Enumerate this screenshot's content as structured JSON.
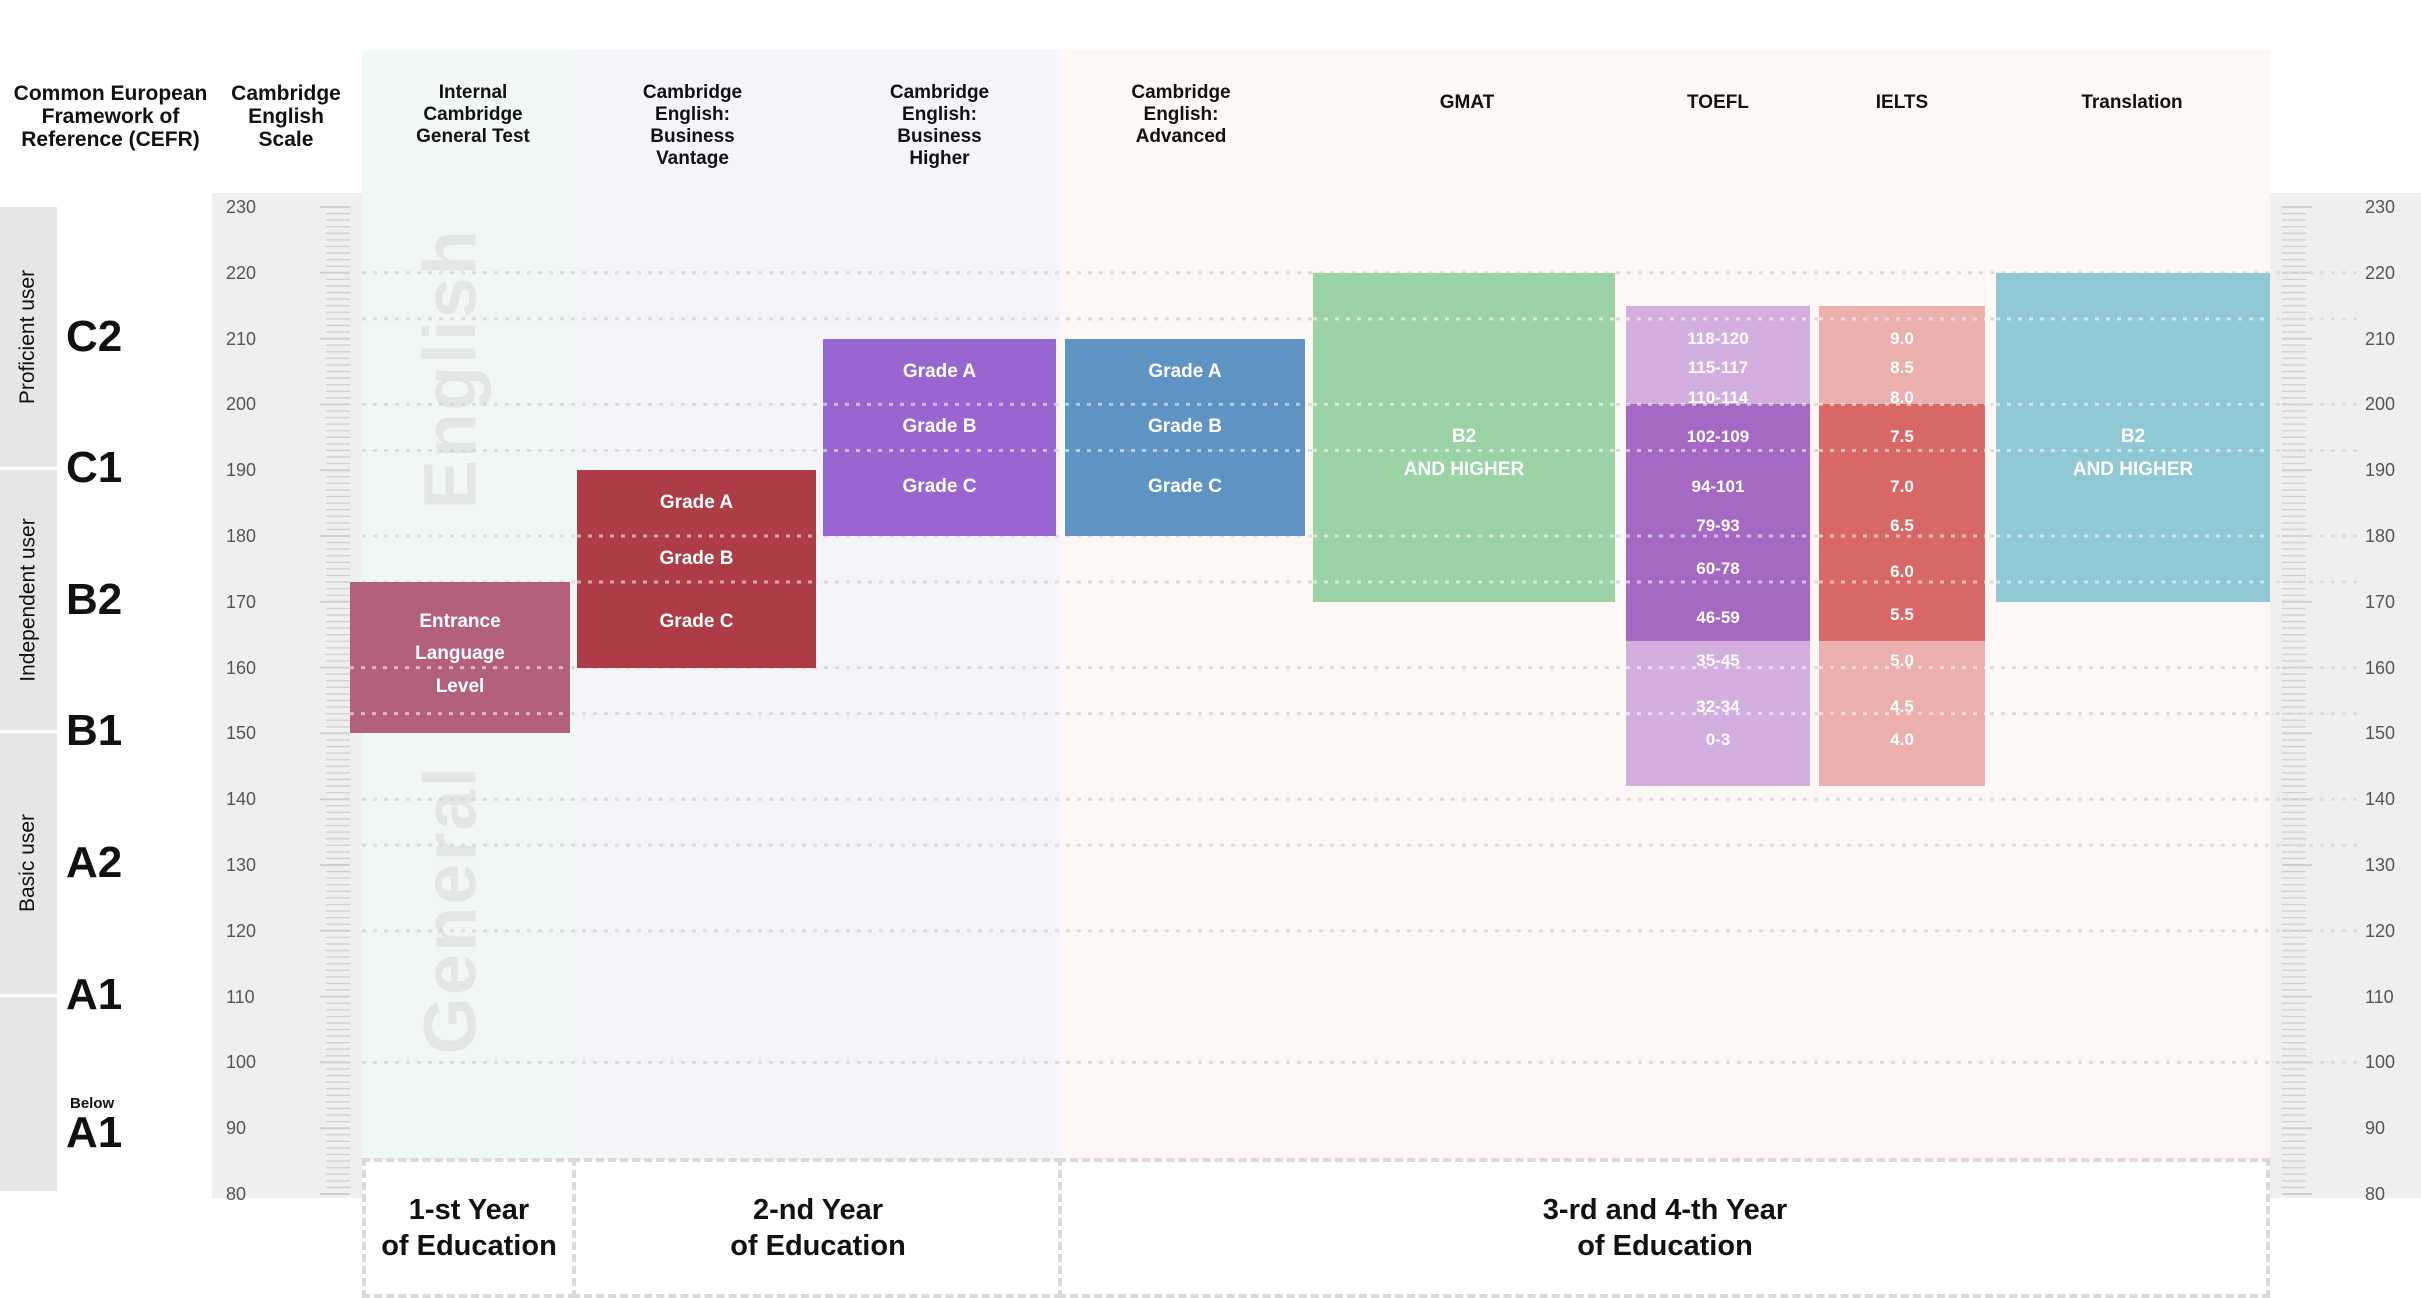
{
  "headers": {
    "cefr": "Common European Framework of Reference (CEFR)",
    "scale": "Cambridge English Scale",
    "internal": "Internal Cambridge General Test",
    "vantage": "Cambridge English: Business Vantage",
    "higher": "Cambridge English: Business Higher",
    "advanced": "Cambridge English: Advanced",
    "gmat": "GMAT",
    "toefl": "TOEFL",
    "ielts": "IELTS",
    "translation": "Translation"
  },
  "groups": [
    {
      "label": "Proficient user",
      "from": 190,
      "to": 230
    },
    {
      "label": "Independent user",
      "from": 150,
      "to": 190
    },
    {
      "label": "Basic user",
      "from": 110,
      "to": 150
    },
    {
      "label": "",
      "from": 80,
      "to": 110
    }
  ],
  "levels": [
    {
      "code": "C2",
      "at": 210
    },
    {
      "code": "C1",
      "at": 190
    },
    {
      "code": "B2",
      "at": 170
    },
    {
      "code": "B1",
      "at": 150
    },
    {
      "code": "A2",
      "at": 130
    },
    {
      "code": "A1",
      "at": 110
    },
    {
      "code": "A1",
      "at": 89,
      "prefix": "Below"
    }
  ],
  "watermark": {
    "english": "English",
    "general": "General"
  },
  "chart_data": {
    "type": "table",
    "axis": {
      "name": "Cambridge English Scale",
      "min": 80,
      "max": 230,
      "step": 10,
      "ticks": [
        80,
        90,
        100,
        110,
        120,
        130,
        140,
        150,
        160,
        170,
        180,
        190,
        200,
        210,
        220,
        230
      ]
    },
    "columns": [
      {
        "key": "internal",
        "color": "#b3607f",
        "from": 150,
        "to": 173,
        "labels": [
          {
            "text": "Entrance",
            "at": 167
          },
          {
            "text": "Language",
            "at": 162
          },
          {
            "text": "Level",
            "at": 157
          }
        ]
      },
      {
        "key": "vantage",
        "color": "#ad3c47",
        "from": 160,
        "to": 190,
        "labels": [
          {
            "text": "Grade A",
            "at": 185
          },
          {
            "text": "Grade B",
            "at": 176.5
          },
          {
            "text": "Grade C",
            "at": 167
          }
        ]
      },
      {
        "key": "higher",
        "color": "#9966d1",
        "from": 180,
        "to": 210,
        "labels": [
          {
            "text": "Grade A",
            "at": 205
          },
          {
            "text": "Grade B",
            "at": 196.5
          },
          {
            "text": "Grade C",
            "at": 187.5
          }
        ]
      },
      {
        "key": "advanced",
        "color": "#5e93c3",
        "from": 180,
        "to": 210,
        "labels": [
          {
            "text": "Grade A",
            "at": 205
          },
          {
            "text": "Grade B",
            "at": 196.5
          },
          {
            "text": "Grade C",
            "at": 187.5
          }
        ]
      },
      {
        "key": "gmat",
        "color": "#9bd2a6",
        "from": 170,
        "to": 220,
        "labels": [
          {
            "text": "B2",
            "at": 195
          },
          {
            "text": "AND HIGHER",
            "at": 190
          }
        ]
      },
      {
        "key": "toefl",
        "segments": [
          {
            "from": 200,
            "to": 215,
            "color": "#d3afdf"
          },
          {
            "from": 164,
            "to": 200,
            "color": "#a569c4"
          },
          {
            "from": 142,
            "to": 164,
            "color": "#d3afdf"
          }
        ],
        "labels": [
          {
            "text": "118-120",
            "at": 210
          },
          {
            "text": "115-117",
            "at": 205.5
          },
          {
            "text": "110-114",
            "at": 201
          },
          {
            "text": "102-109",
            "at": 195
          },
          {
            "text": "94-101",
            "at": 187.5
          },
          {
            "text": "79-93",
            "at": 181.5
          },
          {
            "text": "60-78",
            "at": 175
          },
          {
            "text": "46-59",
            "at": 167.5
          },
          {
            "text": "35-45",
            "at": 161
          },
          {
            "text": "32-34",
            "at": 154
          },
          {
            "text": "0-3",
            "at": 149
          }
        ]
      },
      {
        "key": "ielts",
        "segments": [
          {
            "from": 200,
            "to": 215,
            "color": "#ebb0ad"
          },
          {
            "from": 164,
            "to": 200,
            "color": "#d76865"
          },
          {
            "from": 142,
            "to": 164,
            "color": "#ebb0ad"
          }
        ],
        "labels": [
          {
            "text": "9.0",
            "at": 210
          },
          {
            "text": "8.5",
            "at": 205.5
          },
          {
            "text": "8.0",
            "at": 201
          },
          {
            "text": "7.5",
            "at": 195
          },
          {
            "text": "7.0",
            "at": 187.5
          },
          {
            "text": "6.5",
            "at": 181.5
          },
          {
            "text": "6.0",
            "at": 174.5
          },
          {
            "text": "5.5",
            "at": 168
          },
          {
            "text": "5.0",
            "at": 161
          },
          {
            "text": "4.5",
            "at": 154
          },
          {
            "text": "4.0",
            "at": 149
          }
        ]
      },
      {
        "key": "translation",
        "color": "#90c8d4",
        "from": 170,
        "to": 220,
        "labels": [
          {
            "text": "B2",
            "at": 195
          },
          {
            "text": "AND HIGHER",
            "at": 190
          }
        ]
      }
    ],
    "periods": [
      {
        "label_line1": "1-st Year",
        "label_line2": "of Education"
      },
      {
        "label_line1": "2-nd Year",
        "label_line2": "of Education"
      },
      {
        "label_line1": "3-rd and 4-th Year",
        "label_line2": "of Education"
      }
    ]
  }
}
